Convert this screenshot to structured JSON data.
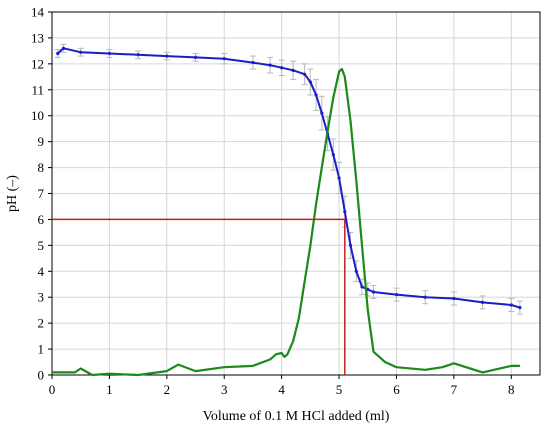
{
  "chart_data": {
    "type": "line",
    "xlabel": "Volume of 0.1 M HCl added (ml)",
    "ylabel": "pH (–)",
    "xlim": [
      0,
      8.5
    ],
    "ylim": [
      0,
      14
    ],
    "x_ticks": [
      0,
      1,
      2,
      3,
      4,
      5,
      6,
      7,
      8
    ],
    "y_ticks": [
      0,
      1,
      2,
      3,
      4,
      5,
      6,
      7,
      8,
      9,
      10,
      11,
      12,
      13,
      14
    ],
    "grid": true,
    "colors": {
      "ph": "#1c1cc8",
      "derivative": "#1a8a1a",
      "marker": "#c81e1e",
      "error": "#b8b8b8"
    },
    "series": [
      {
        "role": "ph",
        "x": [
          0.1,
          0.2,
          0.5,
          1.0,
          1.5,
          2.0,
          2.5,
          3.0,
          3.5,
          3.8,
          4.0,
          4.2,
          4.4,
          4.5,
          4.6,
          4.7,
          4.8,
          4.9,
          5.0,
          5.1,
          5.2,
          5.3,
          5.4,
          5.5,
          5.6,
          6.0,
          6.5,
          7.0,
          7.5,
          8.0,
          8.15
        ],
        "y": [
          12.4,
          12.6,
          12.45,
          12.4,
          12.35,
          12.3,
          12.25,
          12.2,
          12.05,
          11.95,
          11.85,
          11.75,
          11.6,
          11.3,
          10.8,
          10.1,
          9.3,
          8.5,
          7.6,
          6.3,
          5.0,
          4.0,
          3.4,
          3.3,
          3.2,
          3.1,
          3.0,
          2.95,
          2.8,
          2.7,
          2.6
        ],
        "error": [
          0.15,
          0.15,
          0.15,
          0.15,
          0.15,
          0.15,
          0.15,
          0.2,
          0.25,
          0.3,
          0.3,
          0.35,
          0.4,
          0.5,
          0.6,
          0.65,
          0.65,
          0.6,
          0.6,
          0.6,
          0.5,
          0.4,
          0.3,
          0.25,
          0.25,
          0.25,
          0.25,
          0.25,
          0.25,
          0.25,
          0.25
        ]
      },
      {
        "role": "derivative",
        "x": [
          0.0,
          0.4,
          0.5,
          0.7,
          1.0,
          1.5,
          2.0,
          2.2,
          2.5,
          3.0,
          3.5,
          3.8,
          3.9,
          4.0,
          4.05,
          4.1,
          4.2,
          4.3,
          4.4,
          4.5,
          4.6,
          4.7,
          4.8,
          4.9,
          5.0,
          5.05,
          5.1,
          5.2,
          5.3,
          5.4,
          5.5,
          5.6,
          5.8,
          6.0,
          6.5,
          6.8,
          7.0,
          7.5,
          8.0,
          8.15
        ],
        "y": [
          0.1,
          0.1,
          0.25,
          0.0,
          0.05,
          0.0,
          0.15,
          0.4,
          0.15,
          0.3,
          0.35,
          0.6,
          0.8,
          0.85,
          0.7,
          0.8,
          1.3,
          2.2,
          3.6,
          5.0,
          6.6,
          8.0,
          9.4,
          10.7,
          11.7,
          11.8,
          11.5,
          9.8,
          7.5,
          5.0,
          2.5,
          0.9,
          0.5,
          0.3,
          0.2,
          0.3,
          0.45,
          0.1,
          0.35,
          0.35
        ]
      }
    ],
    "markers": {
      "x": 5.1,
      "y": 6.0
    }
  }
}
